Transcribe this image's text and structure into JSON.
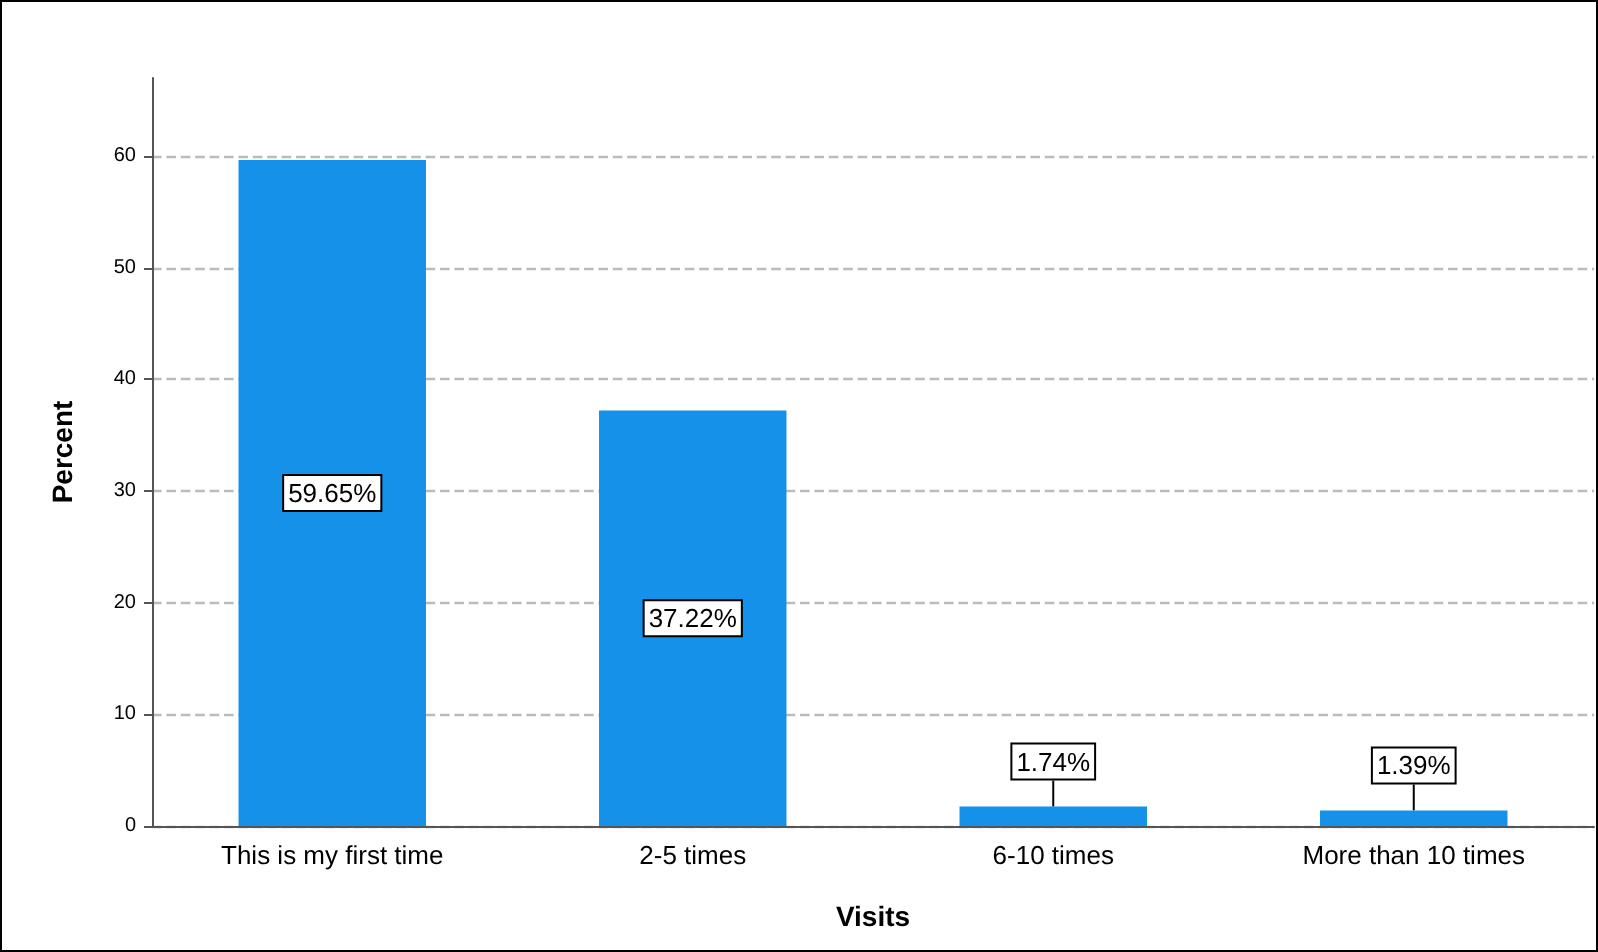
{
  "chart_data": {
    "type": "bar",
    "xlabel": "Visits",
    "ylabel": "Percent",
    "categories": [
      "This is my first time",
      "2-5 times",
      "6-10 times",
      "More than 10 times"
    ],
    "values": [
      59.65,
      37.22,
      1.74,
      1.39
    ],
    "color": "#1591ea",
    "value_labels": [
      "59.65%",
      "37.22%",
      "1.74%",
      "1.39%"
    ],
    "ylim": [
      0,
      67
    ],
    "yticks": [
      0,
      10,
      20,
      30,
      40,
      50,
      60
    ],
    "grid": "y"
  }
}
